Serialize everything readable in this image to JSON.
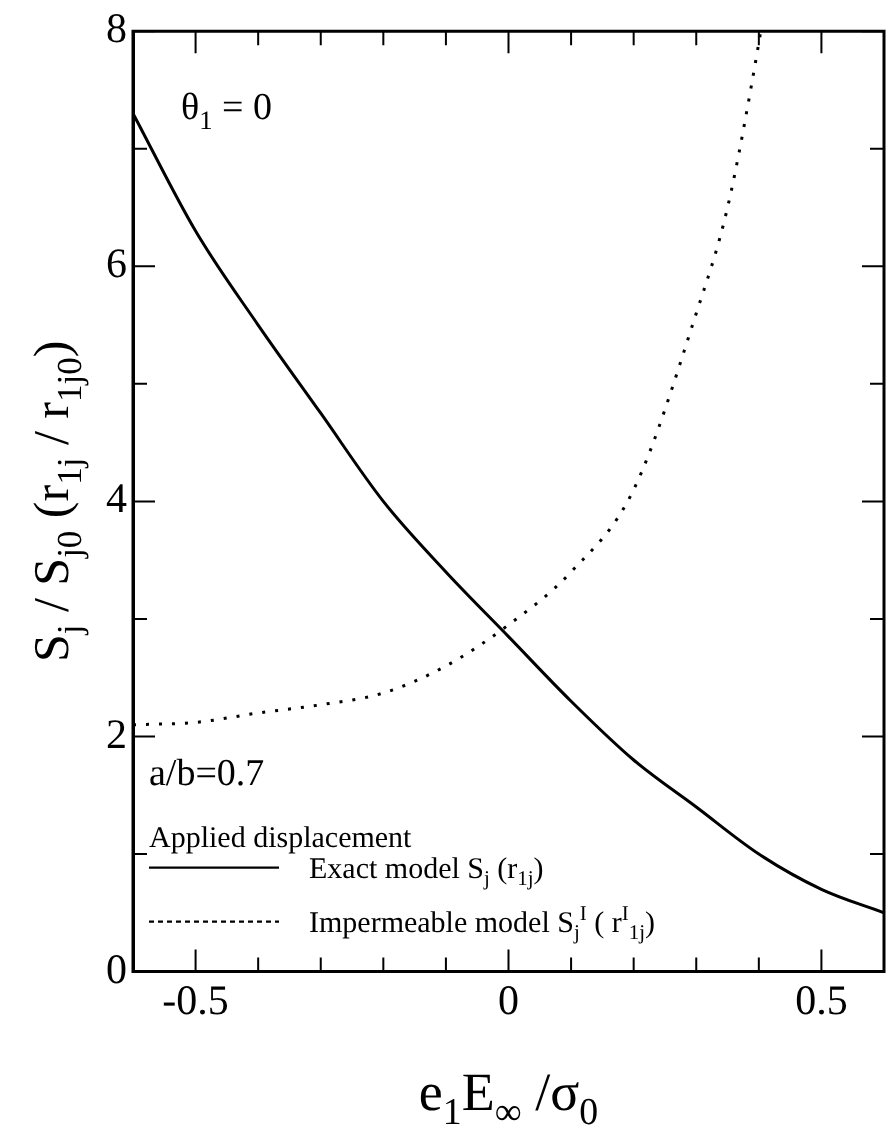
{
  "chart_data": {
    "type": "line",
    "xlabel": "e$_{1}$E$_{∞}$ /σ$_{0}$",
    "ylabel": "S$_{j}$ / S$_{j0}$ (r$_{1j}$ / r$_{1j0}$)",
    "annotations": [
      "θ$_{1}$ = 0",
      "a/b=0.7",
      "Applied displacement"
    ],
    "xlim": [
      -0.6,
      0.6
    ],
    "ylim": [
      0,
      8
    ],
    "xticks": [
      -0.5,
      {
        "value": -0.4,
        "label": null
      },
      {
        "value": -0.3,
        "label": null
      },
      {
        "value": -0.2,
        "label": null
      },
      {
        "value": -0.1,
        "label": null
      },
      0,
      {
        "value": 0.1,
        "label": null
      },
      {
        "value": 0.2,
        "label": null
      },
      {
        "value": 0.3,
        "label": null
      },
      {
        "value": 0.4,
        "label": null
      },
      0.5
    ],
    "yticks": [
      0,
      {
        "value": 1,
        "label": null
      },
      2,
      {
        "value": 3,
        "label": null
      },
      4,
      {
        "value": 5,
        "label": null
      },
      6,
      {
        "value": 7,
        "label": null
      },
      8
    ],
    "grid": false,
    "legend": "bottom left",
    "marker": "none",
    "series": [
      {
        "name": "Exact model S$_{j}$ (r$_{1j}$)",
        "color": "#000000",
        "line_style": "solid",
        "x": [
          -0.6,
          -0.5,
          -0.4,
          -0.3,
          -0.2,
          -0.1,
          0,
          0.1,
          0.2,
          0.3,
          0.4,
          0.5,
          0.6
        ],
        "values": [
          7.3,
          6.3,
          5.5,
          4.75,
          4.0,
          3.4,
          2.85,
          2.3,
          1.8,
          1.4,
          1.0,
          0.7,
          0.5
        ]
      },
      {
        "name": "Impermeable model S$_{j}$$^{I}$ ( r$^{I}$$_{1j}$)",
        "color": "#000000",
        "line_style": "dotted",
        "x": [
          -0.6,
          -0.5,
          -0.4,
          -0.3,
          -0.2,
          -0.1,
          0,
          0.1,
          0.2,
          0.3,
          0.35,
          0.4,
          0.403
        ],
        "values": [
          2.1,
          2.12,
          2.2,
          2.27,
          2.37,
          2.6,
          2.95,
          3.4,
          4.1,
          5.6,
          6.5,
          7.9,
          8
        ]
      }
    ]
  }
}
